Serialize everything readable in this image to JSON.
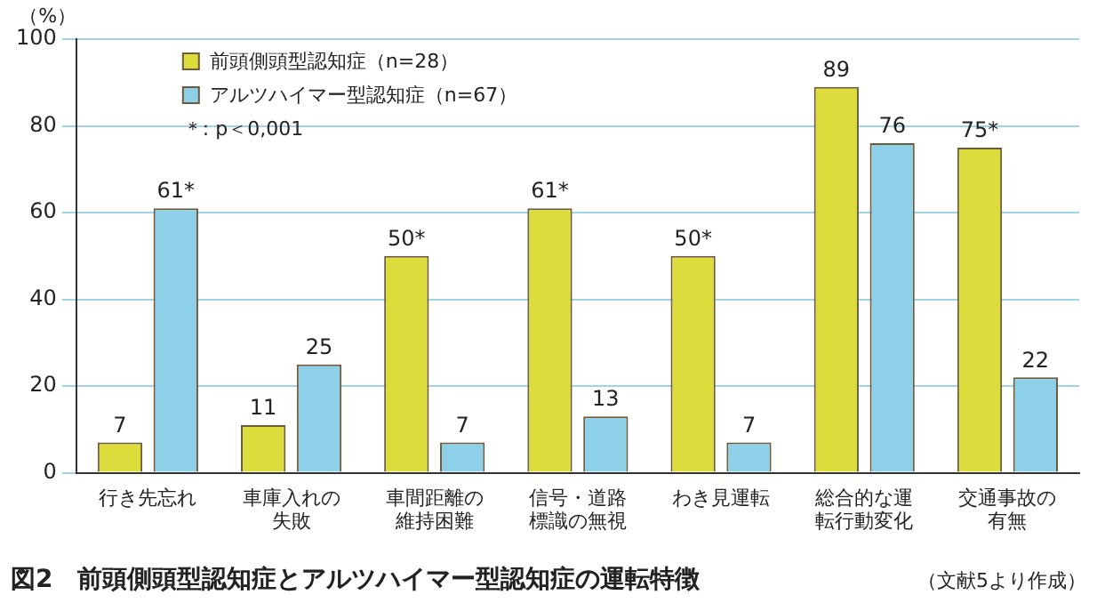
{
  "chart_data": {
    "type": "bar",
    "title": "図2　前頭側頭型認知症とアルツハイマー型認知症の運転特徴",
    "ylabel": "（%）",
    "categories": [
      "行き先忘れ",
      "車庫入れの失敗",
      "車間距離の維持困難",
      "信号・道路標識の無視",
      "わき見運転",
      "総合的な運転行動変化",
      "交通事故の有無"
    ],
    "series": [
      {
        "name": "前頭側頭型認知症（n=28）",
        "color": "#dcdc3c",
        "values": [
          7,
          11,
          50,
          61,
          50,
          89,
          75
        ],
        "value_labels": [
          "7",
          "11",
          "50*",
          "61*",
          "50*",
          "89",
          "75*"
        ]
      },
      {
        "name": "アルツハイマー型認知症（n=67）",
        "color": "#8ed0e8",
        "values": [
          61,
          25,
          7,
          13,
          7,
          76,
          22
        ],
        "value_labels": [
          "61*",
          "25",
          "7",
          "13",
          "7",
          "76",
          "22"
        ]
      }
    ],
    "ylim": [
      0,
      100
    ],
    "yticks": [
      0,
      20,
      40,
      60,
      80,
      100
    ],
    "grid": "y",
    "legend": "top left",
    "annotations": [
      "＊: p＜0,001",
      "（文献5より作成）"
    ]
  }
}
